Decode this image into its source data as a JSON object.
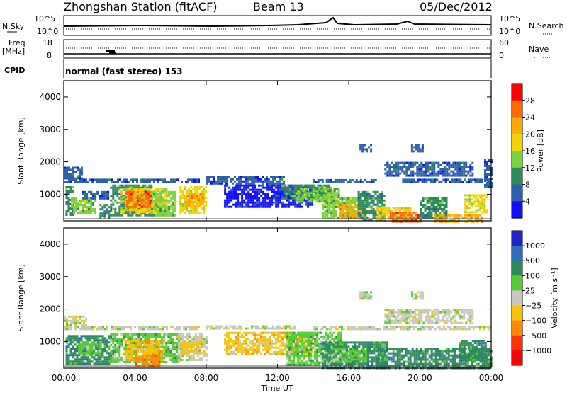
{
  "header": {
    "station": "Zhongshan Station (fitACF)",
    "beam": "Beam 13",
    "date": "05/Dec/2012"
  },
  "summary_panel": {
    "left_top": "N.Sky",
    "left_top_ticks": [
      "10^5",
      "10^0"
    ],
    "right_top": "N.Search",
    "right_top_ticks": [
      "10^5",
      "10^0"
    ],
    "left_mid": "Freq.",
    "left_mid_unit": "[MHz]",
    "left_mid_ticks": [
      "18",
      "8"
    ],
    "right_mid": "Nave",
    "right_mid_ticks": [
      "60",
      "0"
    ],
    "cpid_label": "CPID",
    "cpid_value": "normal (fast stereo) 153"
  },
  "chart_data": [
    {
      "type": "heatmap",
      "name": "power",
      "ylabel": "Slant Range [km]",
      "xlabel": "Time UT",
      "x_ticks": [
        "00:00",
        "04:00",
        "08:00",
        "12:00",
        "16:00",
        "20:00",
        "00:00"
      ],
      "xlim_hours": [
        0,
        24
      ],
      "ylim": [
        180,
        4500
      ],
      "y_ticks": [
        1000,
        2000,
        3000,
        4000
      ],
      "colorbar_label": "Power [dB]",
      "colorbar_ticks": [
        "28",
        "24",
        "20",
        "16",
        "12",
        "8",
        "4"
      ],
      "colorbar_colors": [
        "#ff0000",
        "#ff6a00",
        "#ffaa00",
        "#f3d400",
        "#7ad23c",
        "#2e8b57",
        "#2c5fb0",
        "#1010ff"
      ],
      "regions": [
        {
          "t0": 0.0,
          "t1": 7.6,
          "r0": 1350,
          "r1": 1480,
          "level": 1
        },
        {
          "t0": 0.0,
          "t1": 1.0,
          "r0": 1500,
          "r1": 1850,
          "level": 1
        },
        {
          "t0": 0.1,
          "t1": 0.5,
          "r0": 350,
          "r1": 1250,
          "level": 2
        },
        {
          "t0": 0.4,
          "t1": 1.8,
          "r0": 400,
          "r1": 900,
          "level": 3
        },
        {
          "t0": 1.0,
          "t1": 2.5,
          "r0": 850,
          "r1": 1100,
          "level": 1
        },
        {
          "t0": 2.0,
          "t1": 2.5,
          "r0": 250,
          "r1": 700,
          "level": 2
        },
        {
          "t0": 2.6,
          "t1": 4.9,
          "r0": 350,
          "r1": 1300,
          "level": 2
        },
        {
          "t0": 3.2,
          "t1": 5.8,
          "r0": 450,
          "r1": 1200,
          "level": 4
        },
        {
          "t0": 3.5,
          "t1": 4.9,
          "r0": 600,
          "r1": 1100,
          "level": 6
        },
        {
          "t0": 4.9,
          "t1": 6.3,
          "r0": 350,
          "r1": 1100,
          "level": 3
        },
        {
          "t0": 6.5,
          "t1": 8.0,
          "r0": 450,
          "r1": 1250,
          "level": 4
        },
        {
          "t0": 6.8,
          "t1": 7.8,
          "r0": 650,
          "r1": 1050,
          "level": 5
        },
        {
          "t0": 8.0,
          "t1": 12.3,
          "r0": 1350,
          "r1": 1560,
          "level": 1
        },
        {
          "t0": 9.0,
          "t1": 14.0,
          "r0": 600,
          "r1": 1300,
          "level": 0
        },
        {
          "t0": 12.2,
          "t1": 15.0,
          "r0": 850,
          "r1": 1300,
          "level": 2
        },
        {
          "t0": 13.0,
          "t1": 15.5,
          "r0": 750,
          "r1": 1200,
          "level": 3
        },
        {
          "t0": 14.0,
          "t1": 17.5,
          "r0": 1400,
          "r1": 1470,
          "level": 1
        },
        {
          "t0": 14.5,
          "t1": 17.0,
          "r0": 300,
          "r1": 900,
          "level": 3
        },
        {
          "t0": 15.5,
          "t1": 16.6,
          "r0": 300,
          "r1": 700,
          "level": 5
        },
        {
          "t0": 16.5,
          "t1": 18.0,
          "r0": 200,
          "r1": 1100,
          "level": 2
        },
        {
          "t0": 17.5,
          "t1": 19.5,
          "r0": 200,
          "r1": 600,
          "level": 4
        },
        {
          "t0": 18.3,
          "t1": 20.0,
          "r0": 180,
          "r1": 450,
          "level": 6
        },
        {
          "t0": 19.0,
          "t1": 24.0,
          "r0": 1400,
          "r1": 1480,
          "level": 1
        },
        {
          "t0": 20.0,
          "t1": 21.5,
          "r0": 300,
          "r1": 900,
          "level": 2
        },
        {
          "t0": 20.8,
          "t1": 23.5,
          "r0": 180,
          "r1": 380,
          "level": 5
        },
        {
          "t0": 22.5,
          "t1": 23.7,
          "r0": 450,
          "r1": 1000,
          "level": 4
        },
        {
          "t0": 16.6,
          "t1": 17.2,
          "r0": 2300,
          "r1": 2550,
          "level": 1
        },
        {
          "t0": 19.5,
          "t1": 20.2,
          "r0": 2300,
          "r1": 2550,
          "level": 1
        },
        {
          "t0": 18.0,
          "t1": 23.0,
          "r0": 1550,
          "r1": 2000,
          "level": 1
        },
        {
          "t0": 23.6,
          "t1": 24.0,
          "r0": 1200,
          "r1": 2100,
          "level": 1
        }
      ]
    },
    {
      "type": "heatmap",
      "name": "velocity",
      "ylabel": "Slant Range [km]",
      "xlabel": "Time UT",
      "x_ticks": [
        "00:00",
        "04:00",
        "08:00",
        "12:00",
        "16:00",
        "20:00",
        "00:00"
      ],
      "xlim_hours": [
        0,
        24
      ],
      "ylim": [
        180,
        4500
      ],
      "y_ticks": [
        1000,
        2000,
        3000,
        4000
      ],
      "colorbar_label": "Velocity [m s⁻¹]",
      "colorbar_ticks": [
        "1000",
        "500",
        "100",
        "25",
        "−25",
        "−100",
        "−500",
        "−1000"
      ],
      "colorbar_colors": [
        "#2222cc",
        "#2e6fb8",
        "#2e8b57",
        "#55cc33",
        "#c8c8c0",
        "#f6c400",
        "#ff8800",
        "#ff3300",
        "#ff0000"
      ],
      "regions": [
        {
          "t0": 0.0,
          "t1": 7.6,
          "r0": 1380,
          "r1": 1480,
          "level": 4
        },
        {
          "t0": 0.0,
          "t1": 1.2,
          "r0": 1500,
          "r1": 1800,
          "level": 4
        },
        {
          "t0": 0.1,
          "t1": 2.6,
          "r0": 300,
          "r1": 1200,
          "level": 2
        },
        {
          "t0": 0.8,
          "t1": 2.0,
          "r0": 600,
          "r1": 1000,
          "level": 3
        },
        {
          "t0": 2.6,
          "t1": 6.5,
          "r0": 350,
          "r1": 1250,
          "level": 3
        },
        {
          "t0": 3.4,
          "t1": 5.6,
          "r0": 450,
          "r1": 1050,
          "level": 5
        },
        {
          "t0": 4.0,
          "t1": 5.4,
          "r0": 250,
          "r1": 600,
          "level": 6
        },
        {
          "t0": 6.4,
          "t1": 8.0,
          "r0": 450,
          "r1": 1250,
          "level": 4
        },
        {
          "t0": 6.6,
          "t1": 7.7,
          "r0": 650,
          "r1": 1000,
          "level": 5
        },
        {
          "t0": 8.0,
          "t1": 13.0,
          "r0": 1380,
          "r1": 1500,
          "level": 4
        },
        {
          "t0": 9.0,
          "t1": 14.0,
          "r0": 600,
          "r1": 1300,
          "level": 5
        },
        {
          "t0": 12.5,
          "t1": 15.6,
          "r0": 300,
          "r1": 1300,
          "level": 3
        },
        {
          "t0": 14.5,
          "t1": 18.2,
          "r0": 200,
          "r1": 1000,
          "level": 2
        },
        {
          "t0": 15.0,
          "t1": 17.0,
          "r0": 400,
          "r1": 800,
          "level": 3
        },
        {
          "t0": 17.5,
          "t1": 24.0,
          "r0": 180,
          "r1": 800,
          "level": 2
        },
        {
          "t0": 14.0,
          "t1": 24.0,
          "r0": 1380,
          "r1": 1480,
          "level": 4
        },
        {
          "t0": 16.6,
          "t1": 17.2,
          "r0": 2300,
          "r1": 2550,
          "level": 4
        },
        {
          "t0": 19.5,
          "t1": 20.2,
          "r0": 2300,
          "r1": 2550,
          "level": 4
        },
        {
          "t0": 18.0,
          "t1": 23.0,
          "r0": 1550,
          "r1": 2000,
          "level": 4
        },
        {
          "t0": 22.2,
          "t1": 23.7,
          "r0": 450,
          "r1": 1050,
          "level": 2
        }
      ]
    }
  ]
}
